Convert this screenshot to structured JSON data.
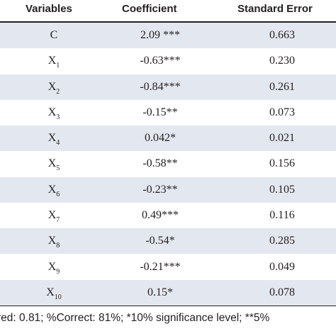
{
  "table": {
    "headers": {
      "variables": "Variables",
      "coefficient": "Coefficient",
      "standard_error": "Standard Error"
    },
    "rows": [
      {
        "var": "C",
        "sub": "",
        "coef": "2.09 ***",
        "se": "0.663"
      },
      {
        "var": "X",
        "sub": "1",
        "coef": "-0.63***",
        "se": "0.230"
      },
      {
        "var": "X",
        "sub": "2",
        "coef": "-0.84***",
        "se": "0.261"
      },
      {
        "var": "X",
        "sub": "3",
        "coef": "-0.15**",
        "se": "0.073"
      },
      {
        "var": "X",
        "sub": "4",
        "coef": "0.042*",
        "se": "0.021"
      },
      {
        "var": "X",
        "sub": "5",
        "coef": "-0.58**",
        "se": "0.156"
      },
      {
        "var": "X",
        "sub": "6",
        "coef": "-0.23**",
        "se": "0.105"
      },
      {
        "var": "X",
        "sub": "7",
        "coef": "0.49***",
        "se": "0.116"
      },
      {
        "var": "X",
        "sub": "8",
        "coef": "-0.54*",
        "se": "0.285"
      },
      {
        "var": "X",
        "sub": "9",
        "coef": "-0.21***",
        "se": "0.049"
      },
      {
        "var": "X",
        "sub": "10",
        "coef": "0.15*",
        "se": "0.078"
      }
    ],
    "shade_color": "#e3e7ef",
    "footnote": "red: 0.81; %Correct: 81%; *10% significance level; **5%"
  }
}
